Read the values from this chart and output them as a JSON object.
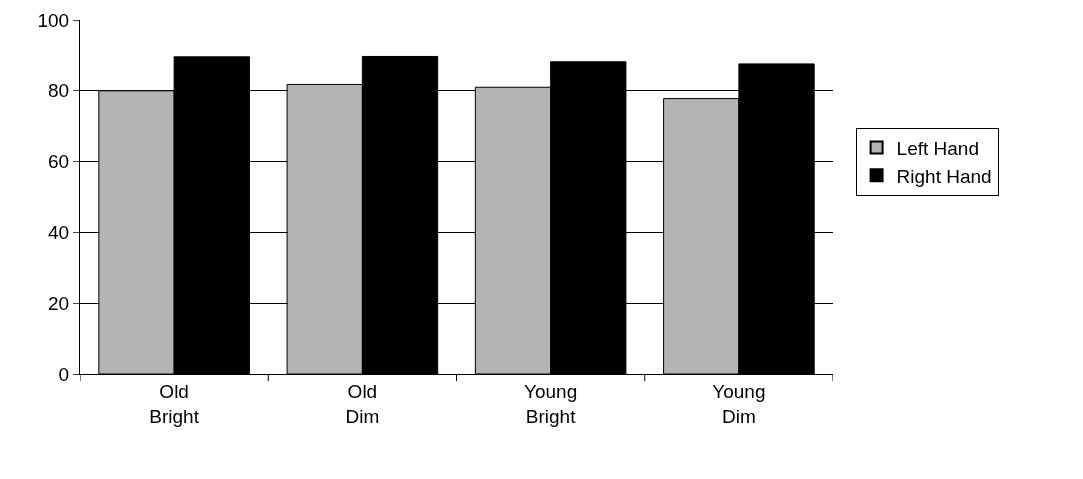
{
  "chart_data": {
    "type": "bar",
    "categories": [
      "Old Bright",
      "Old Dim",
      "Young Bright",
      "Young Dim"
    ],
    "series": [
      {
        "name": "Left Hand",
        "color": "#b4b4b4",
        "values": [
          80,
          81.8,
          81,
          77.8
        ]
      },
      {
        "name": "Right Hand",
        "color": "#000000",
        "values": [
          89.6,
          89.7,
          88.2,
          87.6
        ]
      }
    ],
    "ylim": [
      0,
      100
    ],
    "yticks": [
      0,
      20,
      40,
      60,
      80,
      100
    ],
    "grid": "y",
    "legend": "right"
  }
}
